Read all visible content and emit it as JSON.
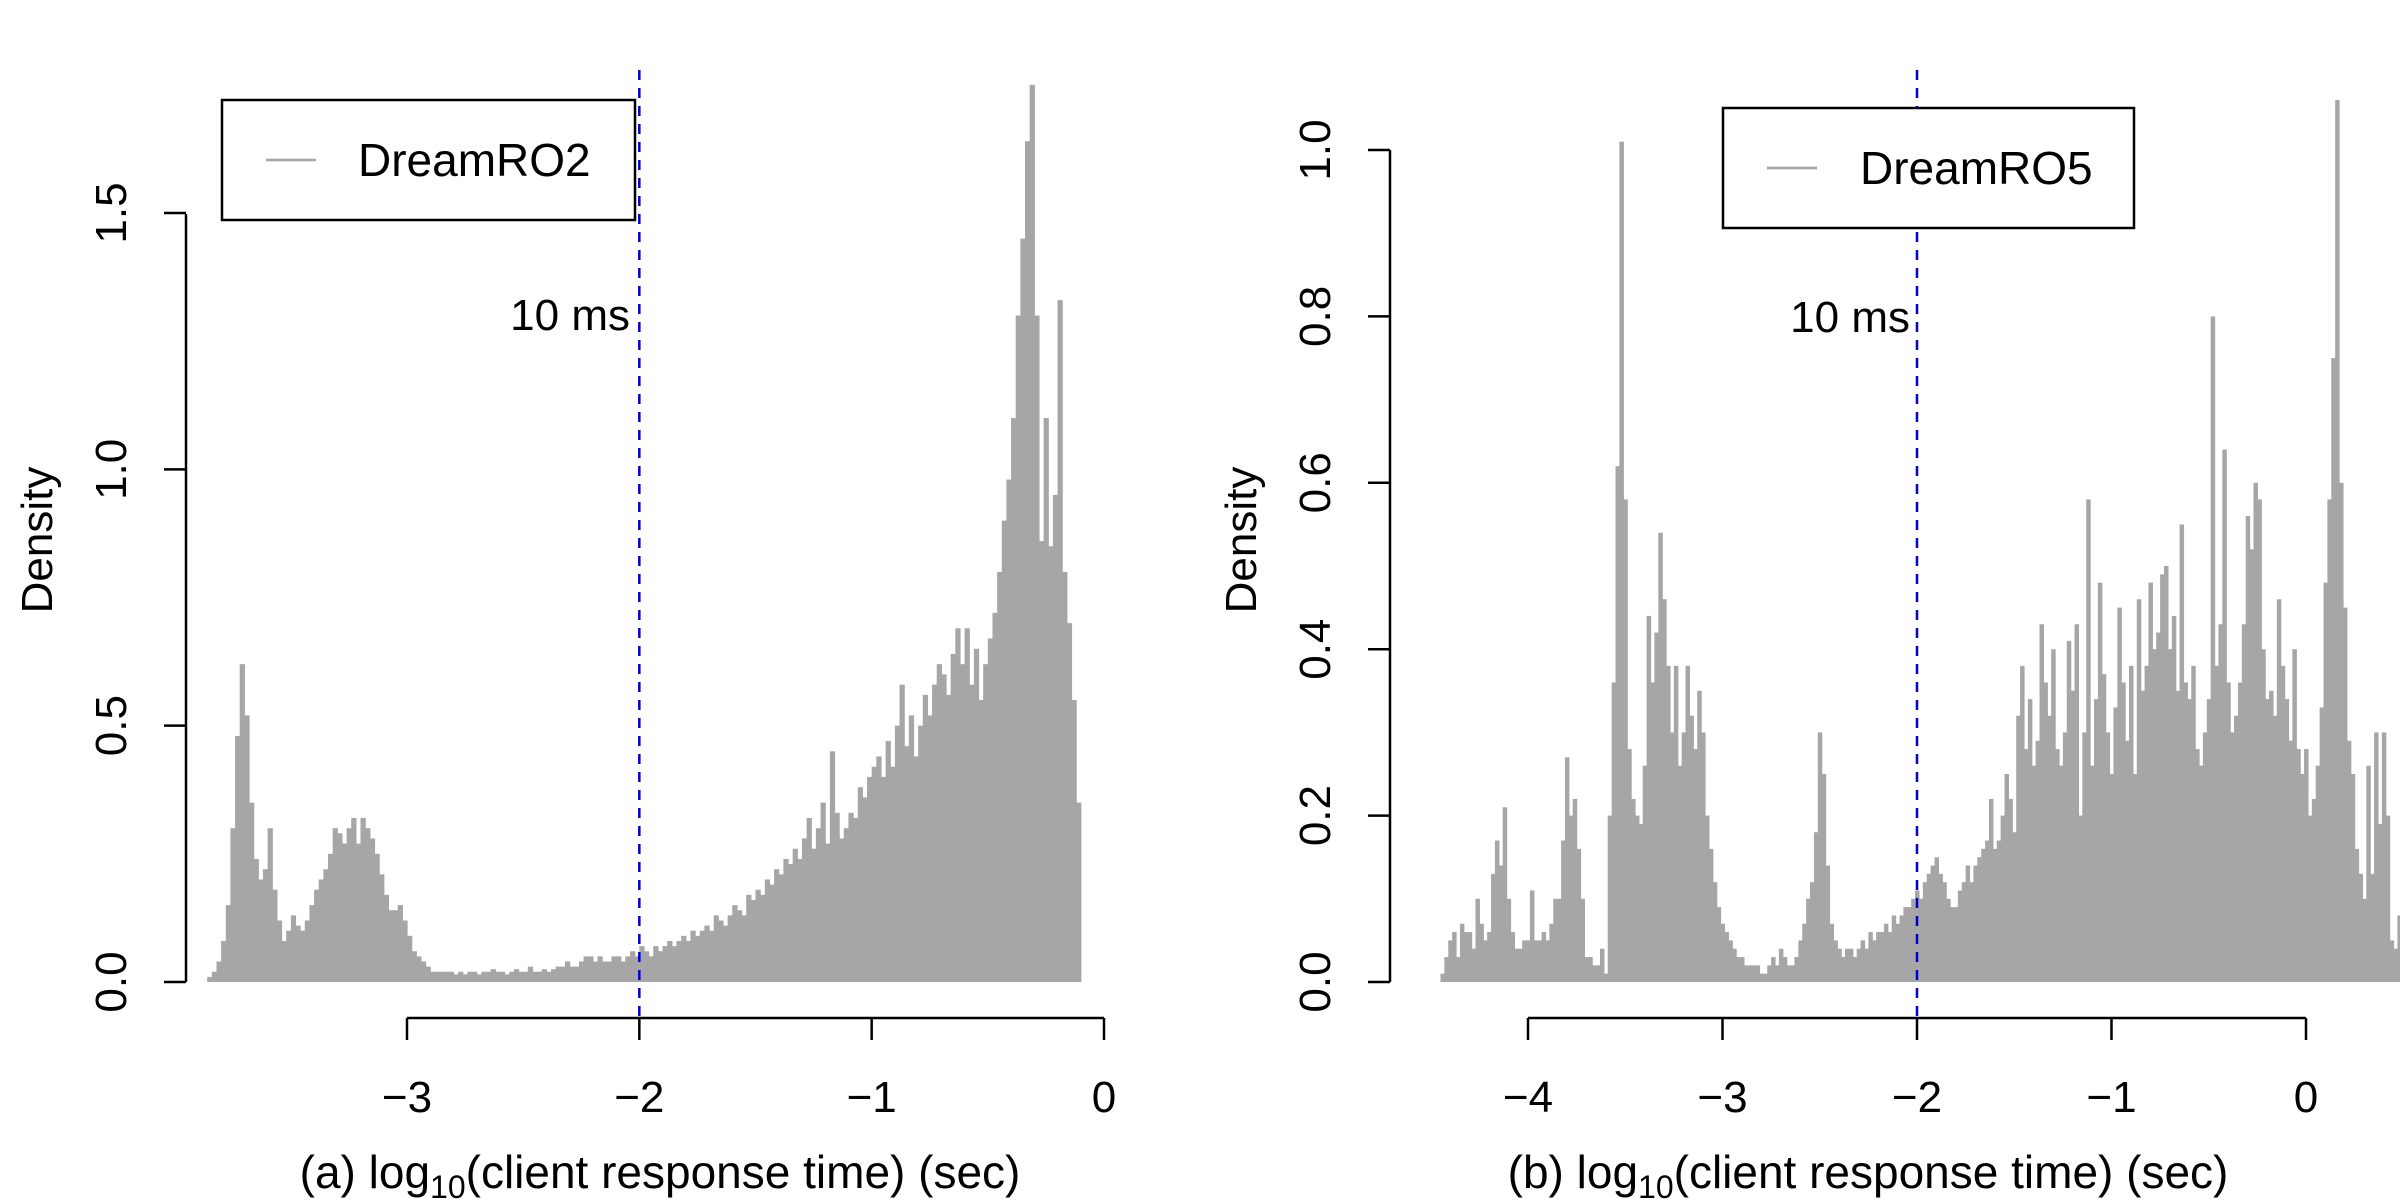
{
  "chart_data": [
    {
      "type": "histogram",
      "panel_caption": "(a) log",
      "caption_sub": "10",
      "caption_rest": "(client response time) (sec)",
      "ylabel": "Density",
      "xlim": [
        -4,
        0
      ],
      "ylim": [
        0,
        1.75
      ],
      "x_ticks": [
        -3,
        -2,
        -1,
        0
      ],
      "x_tick_labels": [
        "−3",
        "−2",
        "−1",
        "0"
      ],
      "y_ticks": [
        0,
        0.5,
        1.0,
        1.5
      ],
      "y_tick_labels": [
        "0.0",
        "0.5",
        "1.0",
        "1.5"
      ],
      "legend": {
        "label": "DreamRO2",
        "position": "top-left"
      },
      "vline": {
        "x": -2,
        "label": "10 ms",
        "color": "#0000cc",
        "style": "dashed"
      },
      "bar_color": "#a6a6a6",
      "bin_width": 0.02,
      "x_start": -3.94,
      "values": [
        0,
        0,
        0,
        0,
        0.01,
        0.02,
        0.04,
        0.08,
        0.15,
        0.3,
        0.48,
        0.62,
        0.52,
        0.35,
        0.24,
        0.2,
        0.22,
        0.3,
        0.18,
        0.12,
        0.08,
        0.1,
        0.13,
        0.11,
        0.1,
        0.12,
        0.15,
        0.18,
        0.2,
        0.22,
        0.25,
        0.3,
        0.29,
        0.27,
        0.3,
        0.32,
        0.27,
        0.32,
        0.3,
        0.28,
        0.25,
        0.21,
        0.17,
        0.14,
        0.14,
        0.15,
        0.12,
        0.09,
        0.06,
        0.05,
        0.04,
        0.03,
        0.02,
        0.02,
        0.02,
        0.02,
        0.02,
        0.015,
        0.02,
        0.015,
        0.02,
        0.02,
        0.015,
        0.02,
        0.02,
        0.025,
        0.02,
        0.02,
        0.015,
        0.02,
        0.025,
        0.02,
        0.02,
        0.03,
        0.02,
        0.02,
        0.025,
        0.02,
        0.025,
        0.03,
        0.03,
        0.04,
        0.03,
        0.03,
        0.04,
        0.05,
        0.05,
        0.04,
        0.05,
        0.04,
        0.04,
        0.05,
        0.05,
        0.04,
        0.05,
        0.06,
        0.05,
        0.07,
        0.06,
        0.05,
        0.07,
        0.06,
        0.07,
        0.08,
        0.07,
        0.08,
        0.09,
        0.08,
        0.1,
        0.09,
        0.1,
        0.11,
        0.1,
        0.13,
        0.12,
        0.11,
        0.13,
        0.15,
        0.14,
        0.13,
        0.17,
        0.16,
        0.18,
        0.17,
        0.2,
        0.19,
        0.22,
        0.21,
        0.24,
        0.23,
        0.26,
        0.24,
        0.28,
        0.32,
        0.26,
        0.3,
        0.35,
        0.27,
        0.45,
        0.33,
        0.28,
        0.3,
        0.33,
        0.32,
        0.38,
        0.36,
        0.4,
        0.42,
        0.44,
        0.4,
        0.47,
        0.42,
        0.5,
        0.58,
        0.46,
        0.52,
        0.44,
        0.5,
        0.56,
        0.52,
        0.58,
        0.62,
        0.6,
        0.56,
        0.64,
        0.69,
        0.62,
        0.69,
        0.58,
        0.65,
        0.55,
        0.62,
        0.67,
        0.72,
        0.8,
        0.9,
        0.98,
        1.1,
        1.3,
        1.45,
        1.64,
        1.75,
        1.3,
        0.86,
        1.1,
        0.85,
        0.95,
        1.33,
        0.8,
        0.7,
        0.55,
        0.35
      ],
      "x_label_ticks": [
        -3,
        -2,
        -1,
        0
      ]
    },
    {
      "type": "histogram",
      "panel_caption": "(b) log",
      "caption_sub": "10",
      "caption_rest": "(client response time) (sec)",
      "ylabel": "Density",
      "xlim": [
        -4.5,
        0
      ],
      "ylim": [
        0,
        1.05
      ],
      "x_ticks": [
        -4,
        -3,
        -2,
        -1,
        0
      ],
      "x_tick_labels": [
        "−4",
        "−3",
        "−2",
        "−1",
        "0"
      ],
      "y_ticks": [
        0,
        0.2,
        0.4,
        0.6,
        0.8,
        1.0
      ],
      "y_tick_labels": [
        "0.0",
        "0.2",
        "0.4",
        "0.6",
        "0.8",
        "1.0"
      ],
      "legend": {
        "label": "DreamRO5",
        "position": "top-right"
      },
      "vline": {
        "x": -2,
        "label": "10 ms",
        "color": "#0000cc",
        "style": "dashed"
      },
      "bar_color": "#a6a6a6",
      "bin_width": 0.02,
      "x_start": -4.45,
      "values": [
        0.01,
        0.03,
        0.05,
        0.06,
        0.03,
        0.07,
        0.06,
        0.06,
        0.04,
        0.1,
        0.07,
        0.05,
        0.06,
        0.13,
        0.17,
        0.14,
        0.21,
        0.1,
        0.06,
        0.04,
        0.04,
        0.05,
        0.05,
        0.11,
        0.05,
        0.05,
        0.06,
        0.05,
        0.07,
        0.1,
        0.1,
        0.17,
        0.27,
        0.2,
        0.22,
        0.16,
        0.1,
        0.03,
        0.03,
        0.02,
        0.02,
        0.04,
        0.01,
        0.2,
        0.36,
        0.62,
        1.01,
        0.58,
        0.28,
        0.22,
        0.2,
        0.19,
        0.26,
        0.44,
        0.36,
        0.42,
        0.54,
        0.46,
        0.38,
        0.3,
        0.38,
        0.26,
        0.3,
        0.38,
        0.32,
        0.28,
        0.35,
        0.3,
        0.2,
        0.16,
        0.12,
        0.09,
        0.07,
        0.06,
        0.05,
        0.04,
        0.03,
        0.03,
        0.02,
        0.02,
        0.02,
        0.02,
        0.01,
        0.01,
        0.02,
        0.03,
        0.02,
        0.04,
        0.03,
        0.02,
        0.02,
        0.03,
        0.05,
        0.07,
        0.1,
        0.12,
        0.18,
        0.3,
        0.25,
        0.14,
        0.07,
        0.05,
        0.04,
        0.03,
        0.04,
        0.04,
        0.03,
        0.04,
        0.05,
        0.04,
        0.06,
        0.05,
        0.06,
        0.06,
        0.07,
        0.06,
        0.08,
        0.07,
        0.08,
        0.09,
        0.09,
        0.1,
        0.11,
        0.1,
        0.12,
        0.13,
        0.14,
        0.15,
        0.13,
        0.12,
        0.1,
        0.09,
        0.09,
        0.11,
        0.12,
        0.14,
        0.12,
        0.14,
        0.15,
        0.16,
        0.17,
        0.22,
        0.16,
        0.17,
        0.2,
        0.25,
        0.22,
        0.18,
        0.32,
        0.38,
        0.28,
        0.34,
        0.26,
        0.29,
        0.43,
        0.36,
        0.32,
        0.4,
        0.28,
        0.26,
        0.3,
        0.41,
        0.35,
        0.43,
        0.2,
        0.3,
        0.58,
        0.26,
        0.34,
        0.48,
        0.37,
        0.3,
        0.25,
        0.33,
        0.45,
        0.36,
        0.29,
        0.38,
        0.25,
        0.46,
        0.35,
        0.38,
        0.48,
        0.4,
        0.42,
        0.49,
        0.5,
        0.4,
        0.44,
        0.35,
        0.55,
        0.36,
        0.34,
        0.38,
        0.28,
        0.26,
        0.3,
        0.34,
        0.8,
        0.38,
        0.43,
        0.64,
        0.36,
        0.3,
        0.32,
        0.36,
        0.43,
        0.56,
        0.52,
        0.6,
        0.58,
        0.4,
        0.34,
        0.35,
        0.32,
        0.46,
        0.38,
        0.34,
        0.29,
        0.4,
        0.28,
        0.25,
        0.28,
        0.2,
        0.22,
        0.26,
        0.33,
        0.48,
        0.58,
        0.75,
        1.06,
        0.6,
        0.45,
        0.29,
        0.25,
        0.16,
        0.13,
        0.1,
        0.26,
        0.13,
        0.3,
        0.19,
        0.3,
        0.2,
        0.05,
        0.04,
        0.08,
        0.06
      ]
    }
  ]
}
